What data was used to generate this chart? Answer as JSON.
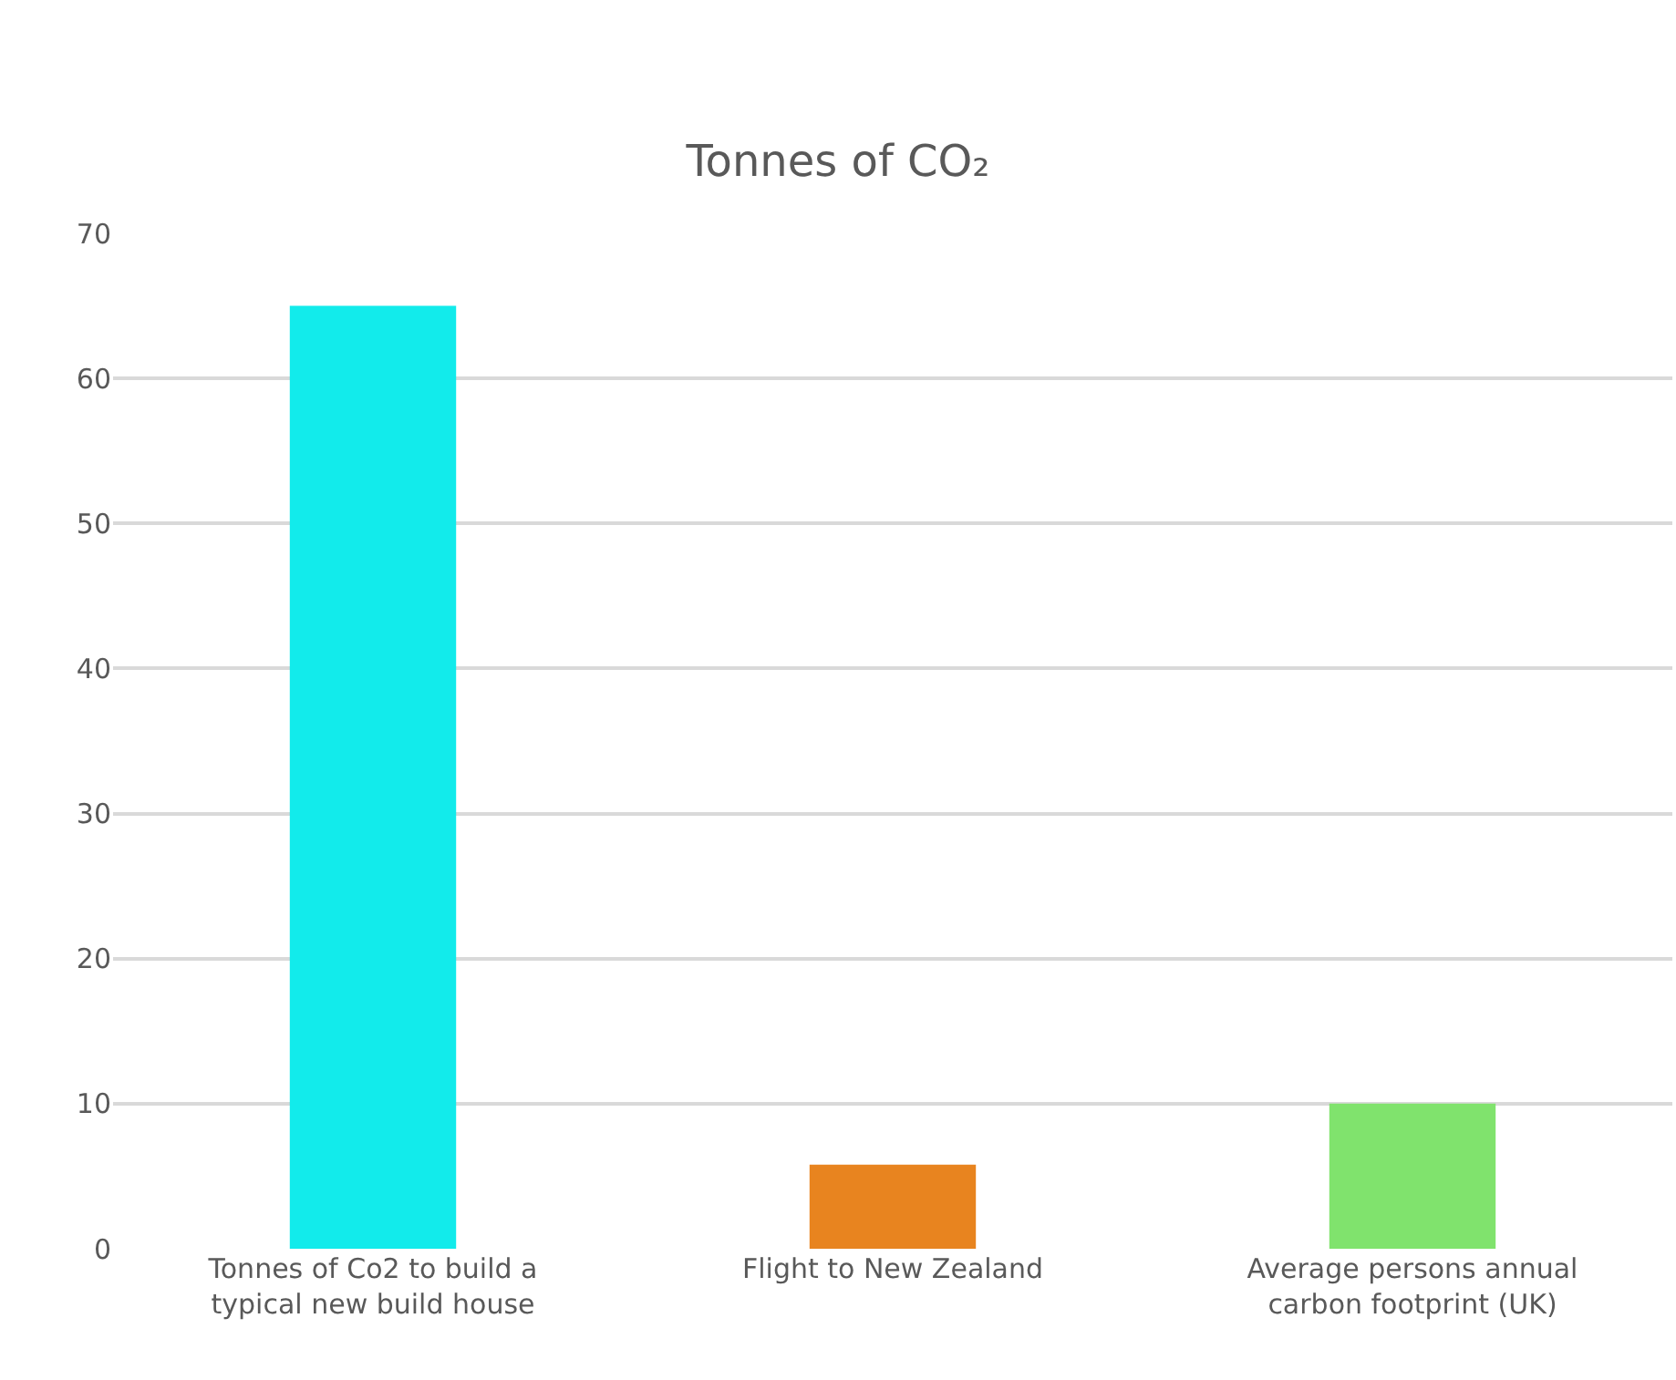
{
  "chart_data": {
    "type": "bar",
    "title": "Tonnes of CO₂",
    "categories": [
      "Tonnes of Co2 to build a typical new build house",
      "Flight to New Zealand",
      "Average persons annual carbon footprint (UK)"
    ],
    "values": [
      65,
      5.8,
      10
    ],
    "colors": [
      "#12ebeb",
      "#e8841f",
      "#80e36d"
    ],
    "ylim": [
      0,
      70
    ],
    "yticks": [
      0,
      10,
      20,
      30,
      40,
      50,
      60,
      70
    ],
    "grid": "y"
  }
}
